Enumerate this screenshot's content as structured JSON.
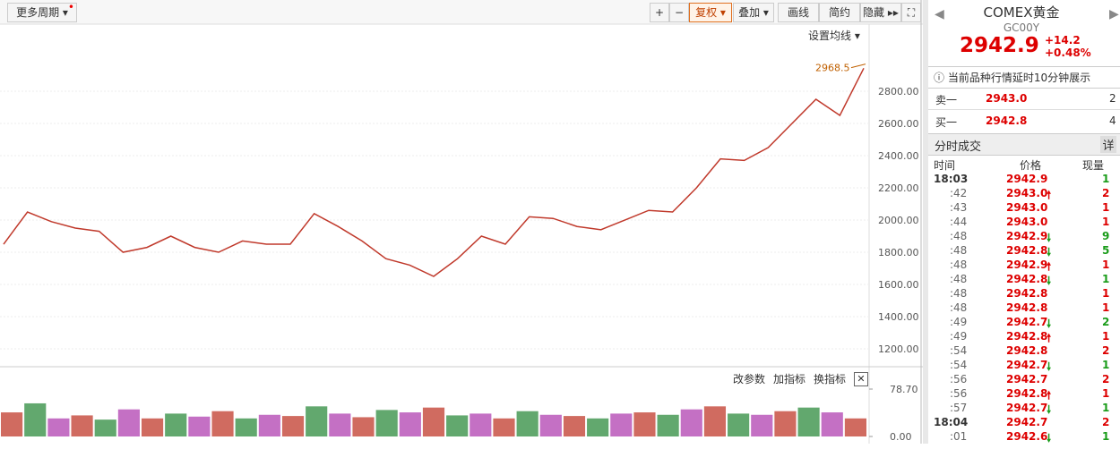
{
  "toolbar": {
    "period": "更多周期",
    "zoom_in": "+",
    "zoom_out": "−",
    "buttons": [
      "复权",
      "叠加",
      "画线",
      "简约",
      "隐藏"
    ],
    "ma_setting": "设置均线"
  },
  "chart_data": {
    "type": "line",
    "color": "#c0392b",
    "values": [
      1850,
      2050,
      1990,
      1950,
      1930,
      1800,
      1830,
      1900,
      1830,
      1800,
      1870,
      1850,
      1850,
      2040,
      1960,
      1870,
      1760,
      1720,
      1650,
      1760,
      1900,
      1850,
      2020,
      2010,
      1960,
      1940,
      2000,
      2060,
      2050,
      2200,
      2380,
      2370,
      2450,
      2600,
      2750,
      2650,
      2942.9
    ],
    "ylim": [
      1089,
      3100
    ],
    "yticks": [
      {
        "value": 2800,
        "label": "2800.00"
      },
      {
        "value": 2600,
        "label": "2600.00"
      },
      {
        "value": 2400,
        "label": "2400.00"
      },
      {
        "value": 2200,
        "label": "2200.00"
      },
      {
        "value": 2000,
        "label": "2000.00"
      },
      {
        "value": 1800,
        "label": "1800.00"
      },
      {
        "value": 1600,
        "label": "1600.00"
      },
      {
        "value": 1400,
        "label": "1400.00"
      },
      {
        "value": 1200,
        "label": "1200.00"
      }
    ],
    "grid": true,
    "annotation": {
      "value": 2968.5,
      "label": "2968.5"
    }
  },
  "volume_chart": {
    "type": "bar",
    "values": [
      40,
      55,
      30,
      35,
      28,
      45,
      30,
      38,
      33,
      42,
      30,
      36,
      34,
      50,
      38,
      32,
      44,
      40,
      48,
      35,
      38,
      30,
      42,
      36,
      34,
      30,
      38,
      40,
      36,
      45,
      50,
      38,
      36,
      42,
      48,
      40,
      30
    ],
    "colors": [
      "#c0392b",
      "#2e8b3e",
      "#b040b0"
    ],
    "ylim": [
      0,
      78.7
    ],
    "yticks": [
      {
        "value": 78.7,
        "label": "78.70"
      },
      {
        "value": 0,
        "label": "0.00"
      }
    ],
    "buttons": [
      "改参数",
      "加指标",
      "换指标"
    ]
  },
  "quote": {
    "name": "COMEX黄金",
    "code": "GC00Y",
    "price": "2942.9",
    "change": "+14.2",
    "change_pct": "+0.48%",
    "notice": "当前品种行情延时10分钟展示",
    "sell": {
      "label": "卖一",
      "price": "2943.0",
      "qty": "2"
    },
    "buy": {
      "label": "买一",
      "price": "2942.8",
      "qty": "4"
    }
  },
  "trades": {
    "title": "分时成交",
    "detail": "详",
    "headers": [
      "时间",
      "价格",
      "现量"
    ],
    "rows": [
      {
        "time": "18:03",
        "price": "2942.9",
        "qty": "1",
        "qty_color": "#1a9c1a"
      },
      {
        "time": ":42",
        "price": "2943.0",
        "qty": "2",
        "dir": "up",
        "qty_color": "#d00"
      },
      {
        "time": ":43",
        "price": "2943.0",
        "qty": "1",
        "qty_color": "#d00"
      },
      {
        "time": ":44",
        "price": "2943.0",
        "qty": "1",
        "qty_color": "#d00"
      },
      {
        "time": ":48",
        "price": "2942.9",
        "qty": "9",
        "dir": "down",
        "qty_color": "#1a9c1a"
      },
      {
        "time": ":48",
        "price": "2942.8",
        "qty": "5",
        "dir": "down",
        "qty_color": "#1a9c1a"
      },
      {
        "time": ":48",
        "price": "2942.9",
        "qty": "1",
        "dir": "up",
        "qty_color": "#d00"
      },
      {
        "time": ":48",
        "price": "2942.8",
        "qty": "1",
        "dir": "down",
        "qty_color": "#1a9c1a"
      },
      {
        "time": ":48",
        "price": "2942.8",
        "qty": "1",
        "qty_color": "#d00"
      },
      {
        "time": ":48",
        "price": "2942.8",
        "qty": "1",
        "qty_color": "#d00"
      },
      {
        "time": ":49",
        "price": "2942.7",
        "qty": "2",
        "dir": "down",
        "qty_color": "#1a9c1a"
      },
      {
        "time": ":49",
        "price": "2942.8",
        "qty": "1",
        "dir": "up",
        "qty_color": "#d00"
      },
      {
        "time": ":54",
        "price": "2942.8",
        "qty": "2",
        "qty_color": "#d00"
      },
      {
        "time": ":54",
        "price": "2942.7",
        "qty": "1",
        "dir": "down",
        "qty_color": "#1a9c1a"
      },
      {
        "time": ":56",
        "price": "2942.7",
        "qty": "2",
        "qty_color": "#d00"
      },
      {
        "time": ":56",
        "price": "2942.8",
        "qty": "1",
        "dir": "up",
        "qty_color": "#d00"
      },
      {
        "time": ":57",
        "price": "2942.7",
        "qty": "1",
        "dir": "down",
        "qty_color": "#1a9c1a"
      },
      {
        "time": "18:04",
        "price": "2942.7",
        "qty": "2",
        "qty_color": "#d00"
      },
      {
        "time": ":01",
        "price": "2942.6",
        "qty": "1",
        "dir": "down",
        "qty_color": "#1a9c1a"
      }
    ]
  }
}
